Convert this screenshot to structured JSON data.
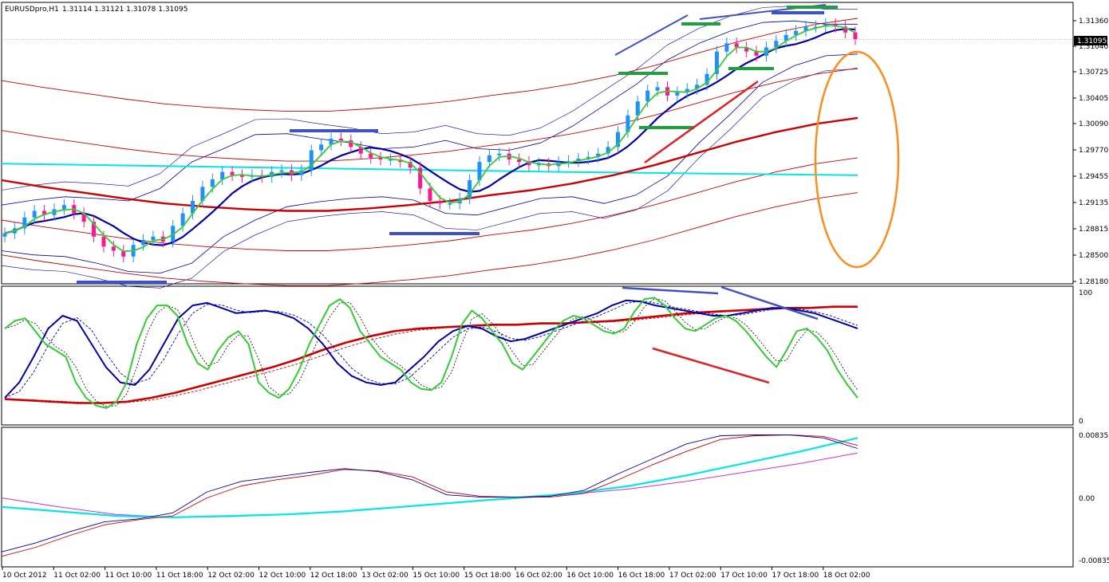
{
  "header": {
    "symbol": "EURUSDpro,H1",
    "ohlc": "1.31114 1.31121 1.31078 1.31095"
  },
  "price_tag": "1.31095",
  "colors": {
    "bull": "#1e90ff",
    "bear": "#ff1493",
    "boll_blue": "#0000aa",
    "env_red": "#cc0000",
    "cyan": "#00e5ee",
    "green": "#33cc33",
    "trend_blue": "#3f51c8",
    "trend_green": "#1f9f3f",
    "ellipse": "#ff8c1a"
  },
  "chart_data": [
    {
      "type": "line",
      "panel": "price",
      "y_ticks": [
        "1.31360",
        "1.31040",
        "1.30725",
        "1.30405",
        "1.30090",
        "1.29770",
        "1.29455",
        "1.29135",
        "1.28815",
        "1.28500",
        "1.28180"
      ],
      "ylim": [
        1.2818,
        1.3136
      ],
      "x_ticks": [
        "10 Oct 2012",
        "11 Oct 02:00",
        "11 Oct 10:00",
        "11 Oct 18:00",
        "12 Oct 02:00",
        "12 Oct 10:00",
        "12 Oct 18:00",
        "13 Oct 02:00",
        "15 Oct 10:00",
        "15 Oct 18:00",
        "16 Oct 02:00",
        "16 Oct 10:00",
        "16 Oct 18:00",
        "17 Oct 02:00",
        "17 Oct 10:00",
        "17 Oct 18:00",
        "18 Oct 02:00"
      ],
      "close_series": [
        1.2876,
        1.2882,
        1.2895,
        1.2903,
        1.2898,
        1.2905,
        1.291,
        1.29,
        1.289,
        1.2872,
        1.286,
        1.2855,
        1.2848,
        1.2862,
        1.2868,
        1.2872,
        1.2866,
        1.2885,
        1.29,
        1.2915,
        1.2932,
        1.2941,
        1.295,
        1.2946,
        1.2944,
        1.2946,
        1.2944,
        1.295,
        1.2952,
        1.2946,
        1.2952,
        1.2976,
        1.2983,
        1.299,
        1.2988,
        1.298,
        1.2972,
        1.2967,
        1.2965,
        1.2965,
        1.2962,
        1.2955,
        1.293,
        1.2915,
        1.2912,
        1.2912,
        1.2918,
        1.294,
        1.2962,
        1.297,
        1.2972,
        1.2965,
        1.2962,
        1.2958,
        1.296,
        1.2957,
        1.2962,
        1.2963,
        1.2966,
        1.2968,
        1.2972,
        1.298,
        1.2998,
        1.3018,
        1.3035,
        1.3048,
        1.3052,
        1.3042,
        1.3046,
        1.305,
        1.3055,
        1.3068,
        1.3095,
        1.3105,
        1.31,
        1.3095,
        1.309,
        1.31,
        1.3108,
        1.3115,
        1.312,
        1.3125,
        1.3125,
        1.3128,
        1.3125,
        1.3118,
        1.311
      ]
    },
    {
      "type": "line",
      "panel": "oscillator",
      "y_ticks": [
        "100",
        "0"
      ],
      "ylim": [
        0,
        100
      ],
      "series": [
        {
          "values": [
            72,
            78,
            80,
            70,
            60,
            55,
            50,
            30,
            18,
            12,
            10,
            15,
            30,
            60,
            80,
            90,
            90,
            82,
            60,
            45,
            40,
            55,
            65,
            70,
            60,
            30,
            22,
            18,
            25,
            40,
            60,
            75,
            90,
            95,
            88,
            70,
            60,
            50,
            45,
            40,
            30,
            25,
            24,
            30,
            50,
            75,
            86,
            80,
            70,
            60,
            45,
            40,
            50,
            60,
            70,
            78,
            82,
            80,
            75,
            70,
            68,
            72,
            85,
            95,
            96,
            90,
            80,
            72,
            70,
            75,
            80,
            82,
            78,
            70,
            60,
            50,
            42,
            55,
            70,
            72,
            65,
            55,
            40,
            28,
            18
          ]
        },
        {
          "values": [
            18,
            30,
            50,
            72,
            82,
            78,
            60,
            42,
            30,
            28,
            40,
            60,
            80,
            90,
            92,
            88,
            84,
            85,
            86,
            84,
            80,
            72,
            60,
            45,
            35,
            30,
            28,
            30,
            40,
            50,
            62,
            70,
            74,
            72,
            66,
            62,
            64,
            68,
            72,
            76,
            80,
            84,
            90,
            94,
            93,
            90,
            88,
            86,
            84,
            82,
            82,
            84,
            86,
            88,
            88,
            86,
            84,
            80,
            76,
            72
          ]
        },
        {
          "values": [
            17,
            16,
            15,
            14,
            14,
            15,
            18,
            22,
            27,
            32,
            37,
            42,
            48,
            55,
            61,
            66,
            70,
            72,
            73,
            74,
            75,
            75,
            76,
            76,
            77,
            78,
            80,
            82,
            84,
            85,
            86,
            87,
            88,
            88,
            89,
            89
          ]
        }
      ]
    },
    {
      "type": "line",
      "panel": "macd",
      "y_ticks": [
        "0.00835",
        "0.00",
        "-0.00835"
      ],
      "ylim": [
        -0.00835,
        0.00835
      ],
      "series": [
        {
          "values": [
            -0.0072,
            -0.006,
            -0.0045,
            -0.0032,
            -0.0028,
            -0.002,
            0.0008,
            0.0022,
            0.0028,
            0.0034,
            0.0039,
            0.0035,
            0.0024,
            0.0004,
            0.0001,
            0.0001,
            0.0002,
            0.001,
            0.0032,
            0.0052,
            0.0072,
            0.0083,
            0.0084,
            0.0084,
            0.008,
            0.0066
          ]
        },
        {
          "values": [
            -0.0078,
            -0.0066,
            -0.005,
            -0.0036,
            -0.0029,
            -0.0024,
            0.0,
            0.0016,
            0.0024,
            0.003,
            0.0038,
            0.0036,
            0.0028,
            0.0008,
            0.0002,
            0.0001,
            0.0001,
            0.0006,
            0.0024,
            0.0044,
            0.0062,
            0.0078,
            0.0083,
            0.0084,
            0.0082,
            0.007
          ]
        },
        {
          "values": [
            -0.0012,
            -0.0018,
            -0.0024,
            -0.0026,
            -0.0024,
            -0.0022,
            -0.0018,
            -0.0012,
            -0.0006,
            0.0,
            0.0006,
            0.0016,
            0.003,
            0.0046,
            0.0062,
            0.008
          ]
        },
        {
          "values": [
            0.0,
            -0.0012,
            -0.0022,
            -0.0026,
            -0.0025,
            -0.0022,
            -0.0018,
            -0.0012,
            -0.0006,
            -0.0001,
            0.0005,
            0.0012,
            0.0022,
            0.0034,
            0.0046,
            0.006
          ]
        }
      ]
    }
  ]
}
